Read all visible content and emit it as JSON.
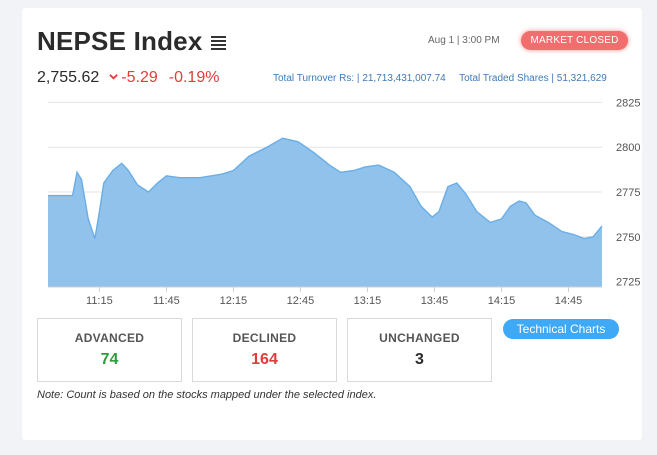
{
  "header": {
    "title": "NEPSE Index",
    "menu_icon": "hamburger-menu-icon",
    "datetime": "Aug 1 | 3:00 PM",
    "market_status": "MARKET CLOSED"
  },
  "summary": {
    "index_value": "2,755.62",
    "change_icon": "down-chevron-icon",
    "change_points": "-5.29",
    "change_percent": "-0.19%",
    "turnover_label": "Total Turnover Rs: |",
    "turnover_value": "21,713,431,007.74",
    "shares_label": "Total Traded Shares |",
    "shares_value": "51,321,629"
  },
  "colors": {
    "negative": "#e03c3c",
    "positive": "#2e9e3e",
    "area_fill": "#90c2ec",
    "area_line": "#6aaee6",
    "badge": "#f26d6d",
    "button": "#3fa9f5"
  },
  "chart_data": {
    "type": "area",
    "x_range": [
      "10:52",
      "15:00"
    ],
    "ylim": [
      2722,
      2828
    ],
    "yticks": [
      2825,
      2800,
      2775,
      2750,
      2725
    ],
    "xticks": [
      "11:15",
      "11:45",
      "12:15",
      "12:45",
      "13:15",
      "13:45",
      "14:15",
      "14:45"
    ],
    "grid": "horizontal",
    "points": [
      [
        "10:52",
        2773
      ],
      [
        "11:03",
        2773
      ],
      [
        "11:05",
        2786
      ],
      [
        "11:07",
        2782
      ],
      [
        "11:10",
        2760
      ],
      [
        "11:13",
        2749
      ],
      [
        "11:15",
        2764
      ],
      [
        "11:17",
        2780
      ],
      [
        "11:21",
        2787
      ],
      [
        "11:25",
        2791
      ],
      [
        "11:28",
        2787
      ],
      [
        "11:32",
        2779
      ],
      [
        "11:37",
        2775
      ],
      [
        "11:41",
        2780
      ],
      [
        "11:45",
        2784
      ],
      [
        "11:51",
        2783
      ],
      [
        "12:00",
        2783
      ],
      [
        "12:10",
        2785
      ],
      [
        "12:15",
        2787
      ],
      [
        "12:22",
        2795
      ],
      [
        "12:30",
        2800
      ],
      [
        "12:37",
        2805
      ],
      [
        "12:44",
        2803
      ],
      [
        "12:51",
        2797
      ],
      [
        "12:58",
        2790
      ],
      [
        "13:03",
        2786
      ],
      [
        "13:09",
        2787
      ],
      [
        "13:14",
        2789
      ],
      [
        "13:20",
        2790
      ],
      [
        "13:27",
        2786
      ],
      [
        "13:34",
        2778
      ],
      [
        "13:39",
        2767
      ],
      [
        "13:44",
        2761
      ],
      [
        "13:47",
        2764
      ],
      [
        "13:51",
        2778
      ],
      [
        "13:55",
        2780
      ],
      [
        "13:59",
        2774
      ],
      [
        "14:04",
        2764
      ],
      [
        "14:10",
        2758
      ],
      [
        "14:15",
        2760
      ],
      [
        "14:19",
        2767
      ],
      [
        "14:23",
        2770
      ],
      [
        "14:26",
        2769
      ],
      [
        "14:30",
        2762
      ],
      [
        "14:36",
        2758
      ],
      [
        "14:42",
        2753
      ],
      [
        "14:48",
        2751
      ],
      [
        "14:52",
        2749
      ],
      [
        "14:56",
        2750
      ],
      [
        "15:00",
        2756
      ]
    ]
  },
  "stats": {
    "advanced_label": "ADVANCED",
    "advanced_value": "74",
    "declined_label": "DECLINED",
    "declined_value": "164",
    "unchanged_label": "UNCHANGED",
    "unchanged_value": "3"
  },
  "buttons": {
    "technical_charts": "Technical Charts"
  },
  "note": "Note: Count is based on the stocks mapped under the selected index."
}
